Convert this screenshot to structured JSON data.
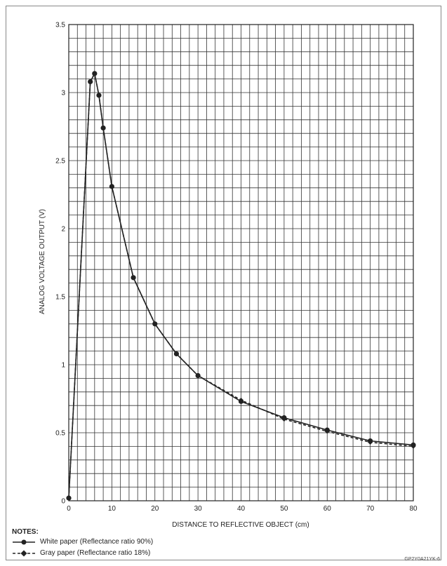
{
  "chart_data": {
    "type": "line",
    "xlabel": "DISTANCE TO REFLECTIVE OBJECT (cm)",
    "ylabel": "ANALOG VOLTAGE OUTPUT (V)",
    "xlim": [
      0,
      80
    ],
    "ylim": [
      0,
      3.5
    ],
    "x_ticks": [
      "0",
      "10",
      "20",
      "30",
      "40",
      "50",
      "60",
      "70",
      "80"
    ],
    "y_ticks": [
      "0",
      "0.5",
      "1",
      "1.5",
      "2",
      "2.5",
      "3",
      "3.5"
    ],
    "grid": true,
    "series": [
      {
        "name": "White paper (Reflectance ratio 90%)",
        "style": "solid",
        "marker": "circle",
        "color": "#222222",
        "x": [
          0,
          5,
          6,
          7,
          8,
          10,
          15,
          20,
          25,
          30,
          40,
          50,
          60,
          70,
          80
        ],
        "y": [
          0.02,
          3.08,
          3.14,
          2.98,
          2.74,
          2.31,
          1.64,
          1.3,
          1.08,
          0.92,
          0.73,
          0.61,
          0.52,
          0.44,
          0.41
        ]
      },
      {
        "name": "Gray paper (Reflectance ratio 18%)",
        "style": "dashed",
        "marker": "diamond",
        "color": "#222222",
        "x": [
          0,
          5,
          6,
          7,
          8,
          10,
          15,
          20,
          25,
          30,
          40,
          50,
          60,
          70,
          80
        ],
        "y": [
          0.02,
          3.08,
          3.14,
          2.98,
          2.74,
          2.31,
          1.64,
          1.3,
          1.08,
          0.92,
          0.74,
          0.6,
          0.51,
          0.43,
          0.4
        ]
      }
    ]
  },
  "notes": {
    "title": "NOTES:",
    "white_label": "White paper (Reflectance ratio 90%)",
    "gray_label": "Gray paper (Reflectance ratio 18%)"
  },
  "figure_code": "GP2Y0A21YK-6"
}
